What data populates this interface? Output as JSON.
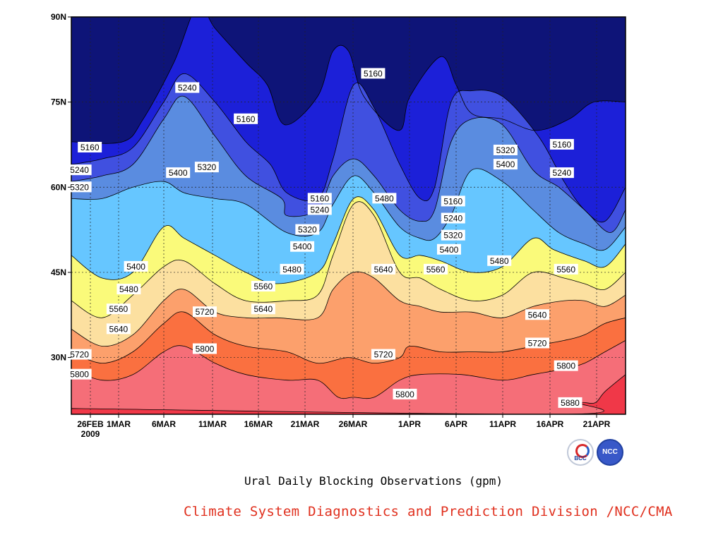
{
  "chart_data": {
    "type": "filled-contour",
    "xlabel": "",
    "ylabel": "",
    "units": "gpm",
    "x_ticks": [
      "26FEB",
      "1MAR",
      "6MAR",
      "11MAR",
      "16MAR",
      "21MAR",
      "26MAR",
      "1APR",
      "6APR",
      "11APR",
      "16APR",
      "21APR"
    ],
    "x_year": "2009",
    "y_ticks": [
      "90N",
      "75N",
      "60N",
      "45N",
      "30N"
    ],
    "ylim": [
      20,
      90
    ],
    "grid": true,
    "levels": [
      5160,
      5240,
      5320,
      5400,
      5480,
      5560,
      5640,
      5720,
      5800,
      5880
    ],
    "level_colors": [
      "#0e1478",
      "#1c20d8",
      "#4050e0",
      "#5a8ce0",
      "#66c6ff",
      "#fafa7a",
      "#fce0a0",
      "#fca06c",
      "#fa7040",
      "#f56e78",
      "#f03848"
    ],
    "contours": [
      {
        "level": 5160,
        "days": [
          0,
          5,
          7,
          10,
          12.3,
          14,
          17,
          19.1,
          20.8,
          24,
          25.5,
          27,
          28.5,
          31.9,
          33,
          36,
          37.5,
          39,
          42,
          45.3,
          48.5,
          50.9,
          54
        ],
        "lat": [
          68,
          68,
          72,
          82,
          92,
          88,
          82,
          78,
          71,
          76,
          84,
          84,
          76,
          70,
          76,
          83,
          78,
          73,
          72,
          70,
          72,
          75,
          75
        ]
      },
      {
        "level": 5240,
        "days": [
          0,
          3,
          6,
          9,
          11,
          14,
          17,
          19.4,
          21,
          24,
          25.5,
          27.5,
          29.5,
          32,
          34,
          35.4,
          37,
          39,
          42,
          45.5,
          48,
          50,
          52,
          54
        ],
        "lat": [
          64,
          65,
          67,
          75,
          80,
          75,
          68,
          64,
          59,
          58,
          65,
          78,
          74,
          64,
          58,
          60,
          75,
          77,
          76,
          69,
          61,
          56,
          54,
          60
        ]
      },
      {
        "level": 5320,
        "days": [
          0,
          3,
          6,
          9,
          11,
          14,
          17,
          20.5,
          21,
          24,
          25.5,
          27.5,
          29.5,
          32,
          34,
          35.4,
          37,
          39,
          42,
          45,
          47.5,
          50,
          52.5,
          54
        ],
        "lat": [
          61,
          62,
          64,
          72,
          76,
          69,
          62,
          58,
          55,
          56,
          62,
          65,
          62,
          56,
          54,
          56,
          68,
          72,
          71,
          63,
          60,
          56,
          52,
          56
        ]
      },
      {
        "level": 5400,
        "days": [
          0,
          3,
          6,
          9,
          11,
          14,
          17,
          21,
          24,
          25.5,
          27.5,
          29.5,
          32,
          34,
          35.4,
          37,
          39,
          42,
          45,
          47.5,
          50,
          52,
          54
        ],
        "lat": [
          58,
          58,
          60,
          61,
          59,
          58,
          57,
          52,
          52,
          57,
          62,
          59,
          53,
          51,
          51,
          55,
          63,
          61,
          56,
          52,
          50,
          49,
          53
        ]
      },
      {
        "level": 5480,
        "days": [
          0,
          3,
          6,
          9,
          11,
          14,
          17,
          20,
          24,
          25.5,
          27.5,
          29.5,
          32,
          34,
          36,
          39,
          42,
          45,
          47,
          50,
          52,
          54
        ],
        "lat": [
          48,
          44,
          45,
          53,
          51,
          48,
          45,
          43,
          45,
          50,
          58,
          56,
          48,
          48,
          47,
          45,
          46,
          51,
          49,
          47,
          46,
          50
        ]
      },
      {
        "level": 5560,
        "days": [
          0,
          3,
          6,
          9,
          11,
          14,
          17,
          21,
          24,
          25.5,
          27.5,
          29.5,
          32,
          34,
          36,
          39,
          42,
          45,
          48,
          50,
          52,
          54
        ],
        "lat": [
          40,
          37,
          41,
          46,
          47,
          43,
          40,
          40,
          41,
          48,
          57,
          55,
          45,
          44,
          42,
          40,
          41,
          45,
          44,
          43,
          42,
          45
        ]
      },
      {
        "level": 5640,
        "days": [
          0,
          3,
          6,
          9,
          11,
          14,
          17,
          20,
          24,
          25.5,
          27.5,
          29.5,
          32,
          34,
          36,
          39,
          42,
          45,
          48,
          50,
          52,
          54
        ],
        "lat": [
          35,
          32,
          34,
          40,
          42,
          38,
          37,
          37,
          37,
          42,
          45,
          44,
          40,
          39,
          38,
          38,
          37,
          39,
          40,
          40,
          39,
          41
        ]
      },
      {
        "level": 5720,
        "days": [
          0,
          3,
          6,
          9,
          11,
          14,
          17,
          21,
          24,
          27,
          29.5,
          32,
          33,
          36,
          39,
          42,
          45,
          48,
          50,
          52,
          54
        ],
        "lat": [
          31,
          29,
          31,
          36,
          38,
          34,
          32,
          31,
          29,
          30,
          29,
          30,
          32,
          31,
          31,
          31,
          32,
          33,
          34,
          36,
          37
        ]
      },
      {
        "level": 5800,
        "days": [
          0,
          3,
          6,
          9,
          11,
          14,
          17,
          21,
          24,
          26,
          27.5,
          29.5,
          32,
          34,
          38,
          42,
          45,
          48,
          50,
          52,
          54
        ],
        "lat": [
          28,
          26,
          27,
          31,
          32,
          29,
          27,
          26,
          26,
          23,
          23,
          23,
          26,
          27,
          27,
          26,
          27,
          28,
          29,
          31,
          33
        ]
      },
      {
        "level": 5880,
        "days": [
          0,
          1,
          48,
          49.5,
          51,
          52,
          54
        ],
        "lat": [
          21,
          21,
          20,
          22,
          22,
          24,
          27
        ]
      }
    ],
    "labels": [
      {
        "text": "5160",
        "day": 1.8,
        "lat": 67
      },
      {
        "text": "5240",
        "day": 0.8,
        "lat": 63
      },
      {
        "text": "5320",
        "day": 0.8,
        "lat": 60
      },
      {
        "text": "5240",
        "day": 11.3,
        "lat": 77.5
      },
      {
        "text": "5160",
        "day": 17,
        "lat": 72
      },
      {
        "text": "5320",
        "day": 13.2,
        "lat": 63.5
      },
      {
        "text": "5400",
        "day": 10.4,
        "lat": 62.5
      },
      {
        "text": "5400",
        "day": 6.3,
        "lat": 46
      },
      {
        "text": "5480",
        "day": 5.6,
        "lat": 42
      },
      {
        "text": "5560",
        "day": 4.6,
        "lat": 38.5
      },
      {
        "text": "5640",
        "day": 4.6,
        "lat": 35
      },
      {
        "text": "5720",
        "day": 0.8,
        "lat": 30.5
      },
      {
        "text": "5800",
        "day": 0.8,
        "lat": 27
      },
      {
        "text": "5720",
        "day": 13,
        "lat": 38
      },
      {
        "text": "5800",
        "day": 13,
        "lat": 31.5
      },
      {
        "text": "5160",
        "day": 24.2,
        "lat": 58
      },
      {
        "text": "5240",
        "day": 24.2,
        "lat": 56
      },
      {
        "text": "5320",
        "day": 23,
        "lat": 52.5
      },
      {
        "text": "5400",
        "day": 22.5,
        "lat": 49.5
      },
      {
        "text": "5480",
        "day": 21.5,
        "lat": 45.5
      },
      {
        "text": "5560",
        "day": 18.7,
        "lat": 42.5
      },
      {
        "text": "5640",
        "day": 18.7,
        "lat": 38.5
      },
      {
        "text": "5160",
        "day": 29.4,
        "lat": 80
      },
      {
        "text": "5480",
        "day": 30.5,
        "lat": 58
      },
      {
        "text": "5640",
        "day": 30.4,
        "lat": 45.5
      },
      {
        "text": "5720",
        "day": 30.4,
        "lat": 30.5
      },
      {
        "text": "5800",
        "day": 32.5,
        "lat": 23.5
      },
      {
        "text": "5560",
        "day": 35.5,
        "lat": 45.5
      },
      {
        "text": "5160",
        "day": 37.2,
        "lat": 57.5
      },
      {
        "text": "5240",
        "day": 37.2,
        "lat": 54.5
      },
      {
        "text": "5320",
        "day": 37.2,
        "lat": 51.5
      },
      {
        "text": "5400",
        "day": 36.8,
        "lat": 49
      },
      {
        "text": "5320",
        "day": 42.3,
        "lat": 66.5
      },
      {
        "text": "5400",
        "day": 42.3,
        "lat": 64
      },
      {
        "text": "5480",
        "day": 41.7,
        "lat": 47
      },
      {
        "text": "5640",
        "day": 45.4,
        "lat": 37.5
      },
      {
        "text": "5720",
        "day": 45.4,
        "lat": 32.5
      },
      {
        "text": "5160",
        "day": 47.8,
        "lat": 67.5
      },
      {
        "text": "5240",
        "day": 47.8,
        "lat": 62.5
      },
      {
        "text": "5560",
        "day": 48.2,
        "lat": 45.5
      },
      {
        "text": "5800",
        "day": 48.2,
        "lat": 28.5
      },
      {
        "text": "5880",
        "day": 48.6,
        "lat": 22
      }
    ]
  },
  "subtitle": "Ural Daily Blocking Observations (gpm)",
  "credit": "Climate System Diagnostics and Prediction Division /NCC/CMA",
  "logos": {
    "left_text": "BCC",
    "right_text": "NCC"
  }
}
